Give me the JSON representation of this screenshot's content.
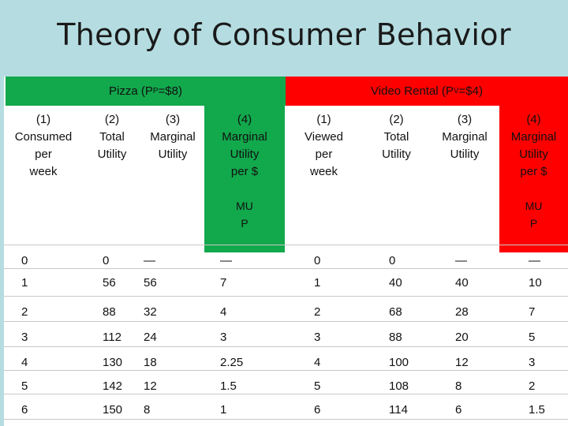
{
  "title": "Theory of Consumer Behavior",
  "pizza_header": {
    "name": "Pizza (P",
    "sub": "P",
    "rest": "=$8)"
  },
  "video_header": {
    "name": "Video Rental (P",
    "sub": "V",
    "rest": "=$4)"
  },
  "columns": [
    {
      "lines": [
        "(1)",
        "Consumed",
        "per",
        "week"
      ]
    },
    {
      "lines": [
        "(2)",
        "Total",
        "Utility"
      ]
    },
    {
      "lines": [
        "(3)",
        "Marginal",
        "Utility"
      ]
    },
    {
      "lines": [
        "(4)",
        "Marginal",
        "Utility",
        "per $"
      ]
    },
    {
      "lines": [
        "(1)",
        "Viewed",
        "per",
        "week"
      ]
    },
    {
      "lines": [
        "(2)",
        "Total",
        "Utility"
      ]
    },
    {
      "lines": [
        "(3)",
        "Marginal",
        "Utility"
      ]
    },
    {
      "lines": [
        "(4)",
        "Marginal",
        "Utility",
        "per $"
      ]
    }
  ],
  "mu_p_label": {
    "top": "MU",
    "bottom": "P"
  },
  "rows": [
    [
      "0",
      "0",
      "—",
      "—",
      "0",
      "0",
      "—",
      "—"
    ],
    [
      "1",
      "56",
      "56",
      "7",
      "1",
      "40",
      "40",
      "10"
    ],
    [
      "2",
      "88",
      "32",
      "4",
      "2",
      "68",
      "28",
      "7"
    ],
    [
      "3",
      "112",
      "24",
      "3",
      "3",
      "88",
      "20",
      "5"
    ],
    [
      "4",
      "130",
      "18",
      "2.25",
      "4",
      "100",
      "12",
      "3"
    ],
    [
      "5",
      "142",
      "12",
      "1.5",
      "5",
      "108",
      "8",
      "2"
    ],
    [
      "6",
      "150",
      "8",
      "1",
      "6",
      "114",
      "6",
      "1.5"
    ]
  ],
  "colors": {
    "background": "#b5dde1",
    "pizza": "#12a84c",
    "video": "#ff0000"
  }
}
